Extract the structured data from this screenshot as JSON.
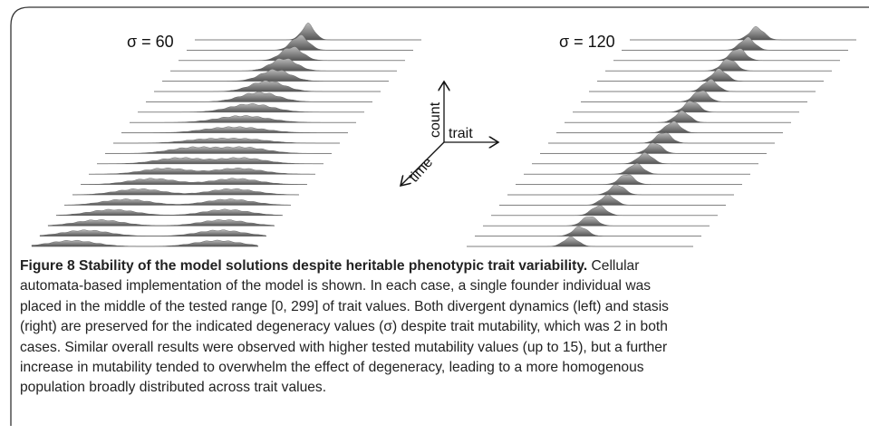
{
  "figure": {
    "left_label": "σ = 60",
    "right_label": "σ = 120",
    "axes": {
      "count": "count",
      "trait": "trait",
      "time": "time"
    }
  },
  "caption": {
    "label": "Figure 8",
    "title": "Stability of the model solutions despite heritable phenotypic trait variability.",
    "lines": [
      "Cellular",
      "automata-based implementation of the model is shown. In each case, a single founder individual was",
      "placed in the middle of the tested range [0, 299] of trait values. Both divergent dynamics (left) and stasis",
      "(right) are preserved for the indicated degeneracy values (σ) despite trait mutability, which was 2 in both",
      "cases. Similar overall results were observed with higher tested mutability values (up to 15), but a further",
      "increase in mutability tended to overwhelm the effect of degeneracy, leading to a more homogenous",
      "population broadly distributed across trait values."
    ]
  }
}
